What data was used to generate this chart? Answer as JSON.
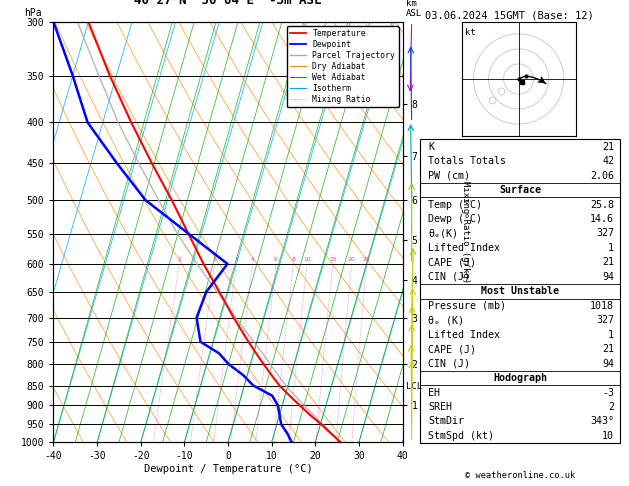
{
  "title_left": "40°27'N  50°04'E  -3m ASL",
  "title_right": "03.06.2024 15GMT (Base: 12)",
  "xlabel": "Dewpoint / Temperature (°C)",
  "temp_profile_p": [
    1000,
    975,
    950,
    925,
    900,
    875,
    850,
    825,
    800,
    775,
    750,
    700,
    650,
    600,
    550,
    500,
    450,
    400,
    350,
    300
  ],
  "temp_profile_t": [
    25.8,
    23.0,
    20.2,
    17.0,
    14.0,
    11.0,
    8.0,
    5.5,
    3.0,
    0.5,
    -2.0,
    -7.0,
    -12.0,
    -17.5,
    -23.0,
    -29.0,
    -36.0,
    -43.5,
    -51.5,
    -60.0
  ],
  "dew_profile_p": [
    1000,
    975,
    950,
    925,
    900,
    875,
    850,
    825,
    800,
    775,
    750,
    700,
    650,
    600,
    550,
    500,
    450,
    400,
    350,
    300
  ],
  "dew_profile_t": [
    14.6,
    13.0,
    11.0,
    10.0,
    9.0,
    7.0,
    2.0,
    -1.0,
    -5.0,
    -8.0,
    -13.0,
    -15.5,
    -15.0,
    -12.0,
    -23.0,
    -35.0,
    -44.0,
    -53.5,
    -60.0,
    -68.0
  ],
  "parcel_profile_p": [
    1000,
    975,
    950,
    925,
    900,
    875,
    850,
    825,
    800,
    775,
    750,
    700,
    650,
    600,
    550,
    500,
    450,
    400,
    350,
    300
  ],
  "parcel_profile_t": [
    25.8,
    23.2,
    20.5,
    17.8,
    15.0,
    12.2,
    9.5,
    7.0,
    4.5,
    2.0,
    -0.8,
    -6.5,
    -12.5,
    -19.0,
    -25.5,
    -32.0,
    -39.0,
    -46.5,
    -54.0,
    -62.5
  ],
  "pressure_levels": [
    300,
    350,
    400,
    450,
    500,
    550,
    600,
    650,
    700,
    750,
    800,
    850,
    900,
    950,
    1000
  ],
  "temp_min": -40,
  "temp_max": 40,
  "skew_per_lnP": 28.0,
  "color_temp": "#ff0000",
  "color_dew": "#0000ff",
  "color_parcel": "#aaaaaa",
  "color_dry_adiabat": "#ff8800",
  "color_wet_adiabat": "#00aa00",
  "color_isotherm": "#00aaff",
  "color_mixing": "#dd44aa",
  "background": "#ffffff",
  "info_K": "21",
  "info_TT": "42",
  "info_PW": "2.06",
  "info_surf_temp": "25.8",
  "info_surf_dewp": "14.6",
  "info_surf_theta": "327",
  "info_surf_li": "1",
  "info_surf_cape": "21",
  "info_surf_cin": "94",
  "info_mu_pres": "1018",
  "info_mu_theta": "327",
  "info_mu_li": "1",
  "info_mu_cape": "21",
  "info_mu_cin": "94",
  "info_hodo_eh": "-3",
  "info_hodo_sreh": "2",
  "info_hodo_stmdir": "343°",
  "info_hodo_stmspd": "10",
  "mixing_ratios": [
    1,
    2,
    3,
    4,
    6,
    8,
    10,
    15,
    20,
    25
  ],
  "km_heights_p": [
    900,
    800,
    700,
    628,
    560,
    500,
    440,
    380
  ],
  "km_heights_labels": [
    "1",
    "2",
    "3",
    "4",
    "5",
    "6",
    "7",
    "8"
  ],
  "lcl_pressure": 852,
  "PMIN": 300,
  "PMAX": 1000
}
